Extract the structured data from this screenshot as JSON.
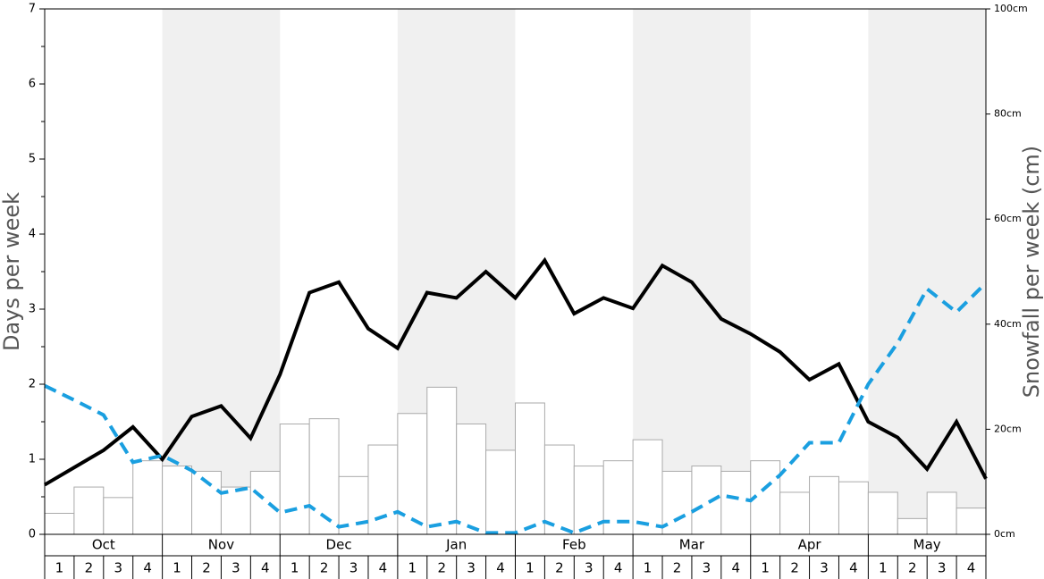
{
  "chart_data": {
    "type": "bar",
    "ylabel": "Days per week",
    "y2label": "Snowfall per week (cm)",
    "groups": [
      "Oct",
      "Nov",
      "Dec",
      "Jan",
      "Feb",
      "Mar",
      "Apr",
      "May"
    ],
    "categories": [
      "1",
      "2",
      "3",
      "4",
      "1",
      "2",
      "3",
      "4",
      "1",
      "2",
      "3",
      "4",
      "1",
      "2",
      "3",
      "4",
      "1",
      "2",
      "3",
      "4",
      "1",
      "2",
      "3",
      "4",
      "1",
      "2",
      "3",
      "4",
      "1",
      "2",
      "3",
      "4"
    ],
    "values": [
      4,
      9,
      7,
      14,
      13,
      12,
      9,
      12,
      21,
      22,
      11,
      17,
      23,
      28,
      21,
      16,
      25,
      17,
      13,
      14,
      18,
      12,
      13,
      12,
      14,
      8,
      11,
      10,
      8,
      3,
      8,
      5
    ],
    "axis": "y2",
    "color": "#ffffff",
    "band_color": "#f0f0f0",
    "xlim": [
      0,
      32
    ],
    "lines": [
      {
        "color": "#000000",
        "dashed": false,
        "x": [
          0,
          1,
          2,
          3,
          4,
          5,
          6,
          7,
          8,
          9,
          10,
          11,
          12,
          13,
          14,
          15,
          16,
          17,
          18,
          19,
          20,
          21,
          22,
          23,
          24,
          25,
          26,
          27,
          28,
          29,
          30,
          31,
          32
        ],
        "values": [
          0.66,
          0.89,
          1.12,
          1.43,
          1.0,
          1.57,
          1.71,
          1.28,
          2.13,
          3.22,
          3.36,
          2.74,
          2.48,
          3.22,
          3.15,
          3.5,
          3.15,
          3.65,
          2.94,
          3.15,
          3.01,
          3.58,
          3.36,
          2.87,
          2.67,
          2.43,
          2.06,
          2.27,
          1.5,
          1.29,
          0.87,
          1.5,
          0.74
        ]
      },
      {
        "color": "#1a9fe0",
        "dashed": true,
        "x": [
          0,
          1,
          2,
          3,
          4,
          5,
          6,
          7,
          8,
          9,
          10,
          11,
          12,
          13,
          14,
          15,
          16,
          17,
          18,
          19,
          20,
          21,
          22,
          23,
          24,
          25,
          26,
          27,
          28,
          29,
          30,
          31,
          32
        ],
        "values": [
          1.98,
          1.79,
          1.59,
          0.96,
          1.05,
          0.85,
          0.55,
          0.62,
          0.29,
          0.38,
          0.1,
          0.17,
          0.3,
          0.1,
          0.17,
          0.02,
          0.02,
          0.17,
          0.02,
          0.17,
          0.17,
          0.1,
          0.3,
          0.52,
          0.45,
          0.79,
          1.22,
          1.22,
          2.0,
          2.55,
          3.27,
          2.96,
          3.35
        ]
      }
    ],
    "ylim": [
      0,
      7
    ],
    "yticks": [
      0,
      1,
      2,
      3,
      4,
      5,
      6,
      7
    ],
    "y2lim": [
      0,
      100
    ],
    "y2ticks": [
      {
        "value": 0,
        "label": "0cm"
      },
      {
        "value": 20,
        "label": "20cm"
      },
      {
        "value": 40,
        "label": "40cm"
      },
      {
        "value": 60,
        "label": "60cm"
      },
      {
        "value": 80,
        "label": "80cm"
      },
      {
        "value": 100,
        "label": "100cm"
      }
    ]
  }
}
